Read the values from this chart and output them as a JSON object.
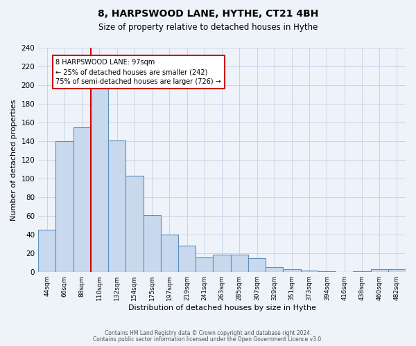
{
  "title": "8, HARPSWOOD LANE, HYTHE, CT21 4BH",
  "subtitle": "Size of property relative to detached houses in Hythe",
  "xlabel": "Distribution of detached houses by size in Hythe",
  "ylabel": "Number of detached properties",
  "bar_labels": [
    "44sqm",
    "66sqm",
    "88sqm",
    "110sqm",
    "132sqm",
    "154sqm",
    "175sqm",
    "197sqm",
    "219sqm",
    "241sqm",
    "263sqm",
    "285sqm",
    "307sqm",
    "329sqm",
    "351sqm",
    "373sqm",
    "394sqm",
    "416sqm",
    "438sqm",
    "460sqm",
    "482sqm"
  ],
  "bar_heights": [
    45,
    140,
    155,
    200,
    141,
    103,
    61,
    40,
    28,
    16,
    19,
    19,
    15,
    5,
    3,
    2,
    1,
    0,
    1,
    3,
    3
  ],
  "bar_color": "#c9d9ed",
  "bar_edge_color": "#5b8fbe",
  "red_line_x": 2.5,
  "annotation_text": "8 HARPSWOOD LANE: 97sqm\n← 25% of detached houses are smaller (242)\n75% of semi-detached houses are larger (726) →",
  "annotation_box_color": "#ffffff",
  "annotation_box_edge": "#cc0000",
  "ylim": [
    0,
    240
  ],
  "yticks": [
    0,
    20,
    40,
    60,
    80,
    100,
    120,
    140,
    160,
    180,
    200,
    220,
    240
  ],
  "grid_color": "#c8d4e8",
  "background_color": "#eef3fa",
  "footer_line1": "Contains HM Land Registry data © Crown copyright and database right 2024.",
  "footer_line2": "Contains public sector information licensed under the Open Government Licence v3.0."
}
